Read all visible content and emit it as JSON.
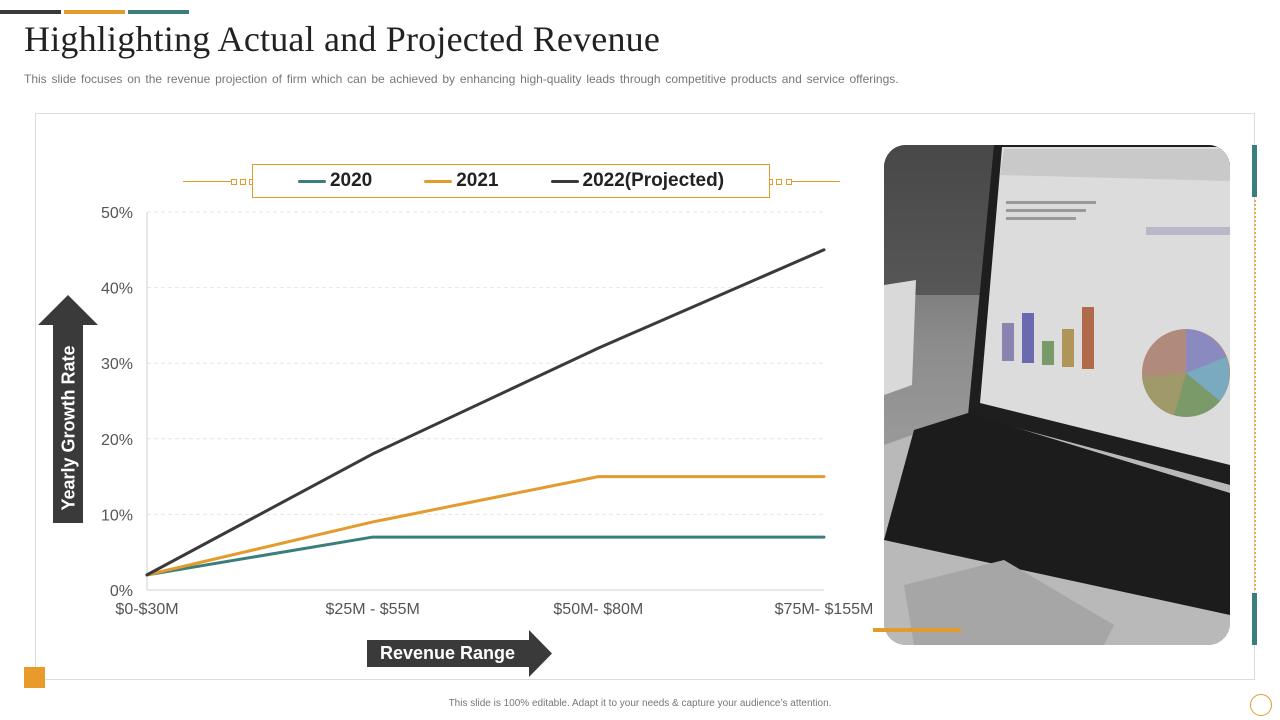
{
  "slide": {
    "title": "Highlighting Actual and Projected Revenue",
    "subtitle": "This slide focuses on the revenue  projection of firm which can be achieved by enhancing high-quality leads through competitive products and service offerings.",
    "footer": "This slide is 100% editable. Adapt it to your needs & capture your audience’s attention.",
    "accent_colors": {
      "dark": "#3a3a3a",
      "orange": "#e39b2d",
      "teal": "#3a7f7c"
    }
  },
  "chart_data": {
    "type": "line",
    "title": "",
    "xlabel": "Revenue Range",
    "ylabel": "Yearly Growth Rate",
    "categories": [
      "$0-$30M",
      "$25M - $55M",
      "$50M- $80M",
      "$75M- $155M"
    ],
    "y_ticks": [
      "0%",
      "10%",
      "20%",
      "30%",
      "40%",
      "50%"
    ],
    "ylim": [
      0,
      50
    ],
    "grid": true,
    "legend_position": "top",
    "series": [
      {
        "name": "2020",
        "color": "#3a7f7c",
        "values": [
          2,
          7,
          7,
          7
        ]
      },
      {
        "name": "2021",
        "color": "#e39b2d",
        "values": [
          2,
          9,
          15,
          15
        ]
      },
      {
        "name": "2022(Projected)",
        "color": "#3a3a3a",
        "values": [
          2,
          18,
          32,
          45
        ]
      }
    ]
  },
  "photo": {
    "description_icon": "laptop-photo-icon"
  }
}
